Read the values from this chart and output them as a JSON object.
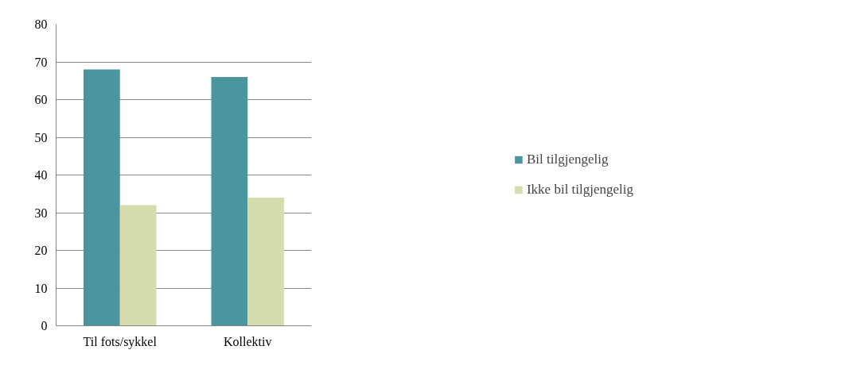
{
  "chart_data": {
    "type": "bar",
    "categories": [
      "Til fots/sykkel",
      "Kollektiv"
    ],
    "series": [
      {
        "name": "Bil tilgjengelig",
        "color": "#4a959e",
        "values": [
          68,
          66
        ]
      },
      {
        "name": "Ikke bil tilgjengelig",
        "color": "#d5dcae",
        "values": [
          32,
          34
        ]
      }
    ],
    "ylim": [
      0,
      80
    ],
    "yticks": [
      0,
      10,
      20,
      30,
      40,
      50,
      60,
      70,
      80
    ],
    "grid": "y",
    "legend": "right"
  }
}
